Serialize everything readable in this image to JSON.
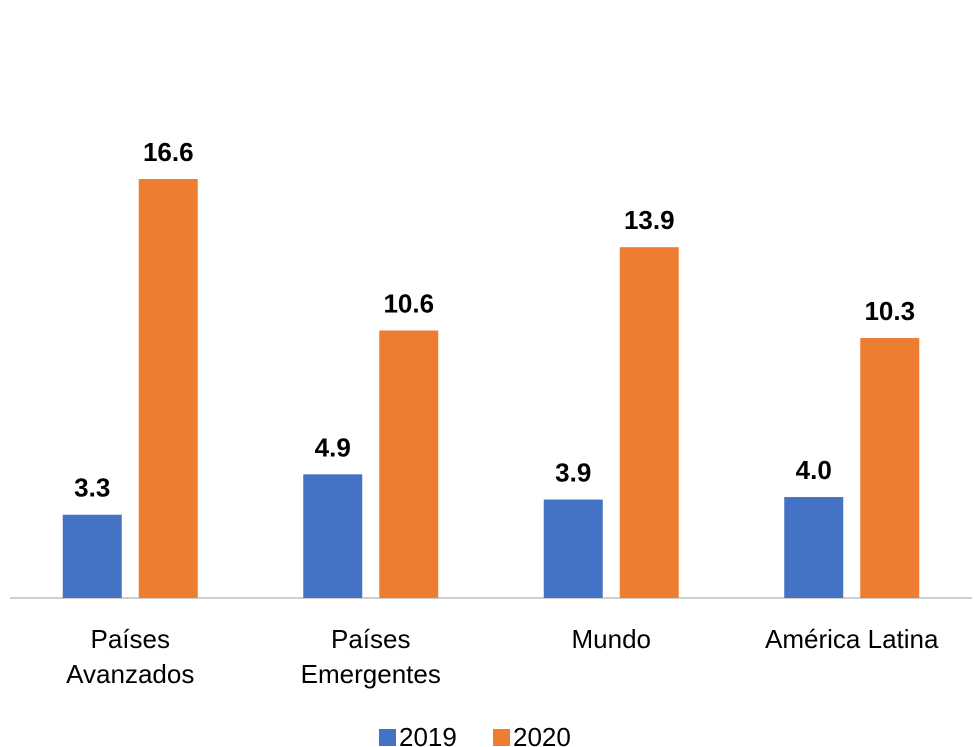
{
  "chart_data": {
    "type": "bar",
    "categories": [
      "Países\nAvanzados",
      "Países\nEmergentes",
      "Mundo",
      "América Latina"
    ],
    "series": [
      {
        "name": "2019",
        "color": "#4472c4",
        "values": [
          3.3,
          4.9,
          3.9,
          4.0
        ],
        "value_labels": [
          "3.3",
          "4.9",
          "3.9",
          "4.0"
        ]
      },
      {
        "name": "2020",
        "color": "#ed7d31",
        "values": [
          16.6,
          10.6,
          13.9,
          10.3
        ],
        "value_labels": [
          "16.6",
          "10.6",
          "13.9",
          "10.3"
        ]
      }
    ],
    "ylim": [
      0,
      21
    ],
    "legend": "bottom"
  }
}
